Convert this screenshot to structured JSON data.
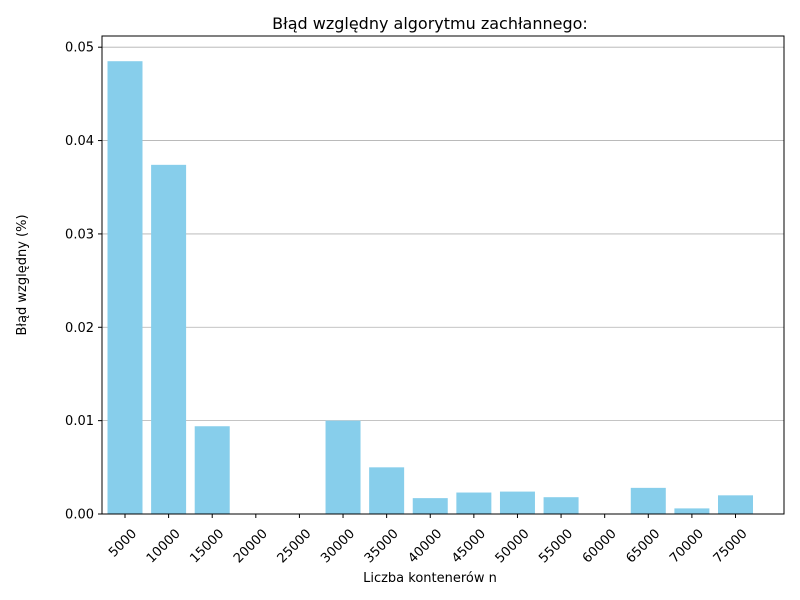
{
  "chart_data": {
    "type": "bar",
    "title": "Błąd względny algorytmu zachłannego:",
    "xlabel": "Liczba kontenerów n",
    "ylabel": "Błąd względny (%)",
    "categories": [
      "5000",
      "10000",
      "15000",
      "20000",
      "25000",
      "30000",
      "35000",
      "40000",
      "45000",
      "50000",
      "55000",
      "60000",
      "65000",
      "70000",
      "75000"
    ],
    "values": [
      0.0485,
      0.0374,
      0.0094,
      0.0,
      0.0,
      0.01,
      0.005,
      0.0017,
      0.0023,
      0.0024,
      0.0018,
      0.0,
      0.0028,
      0.0006,
      0.002
    ],
    "ylim": [
      0,
      0.0512
    ],
    "yticks": [
      "0.00",
      "0.01",
      "0.02",
      "0.03",
      "0.04",
      "0.05"
    ],
    "ytick_values": [
      0,
      0.01,
      0.02,
      0.03,
      0.04,
      0.05
    ],
    "grid": "y",
    "bar_color": "#87ceeb"
  }
}
